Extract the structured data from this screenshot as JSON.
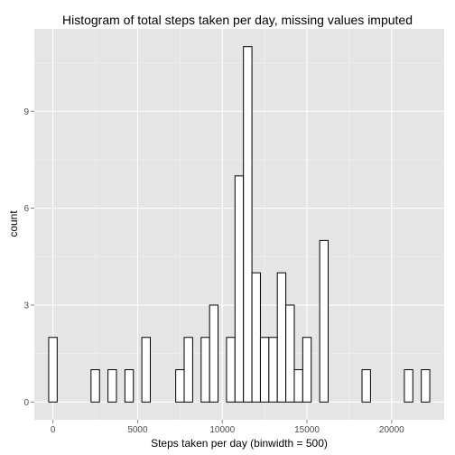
{
  "chart_data": {
    "type": "bar",
    "title": "Histogram of total steps taken per day, missing values imputed",
    "xlabel": "Steps taken per day (binwidth = 500)",
    "ylabel": "count",
    "xlim": [
      -1100,
      23100
    ],
    "ylim": [
      -0.55,
      11.55
    ],
    "x_ticks": [
      0,
      5000,
      10000,
      15000,
      20000
    ],
    "x_tick_labels": [
      "0",
      "5000",
      "10000",
      "15000",
      "20000"
    ],
    "y_ticks": [
      0,
      3,
      6,
      9
    ],
    "y_tick_labels": [
      "0",
      "3",
      "6",
      "9"
    ],
    "binwidth": 500,
    "grid": true,
    "bin_starts": [
      -250,
      250,
      750,
      1250,
      1750,
      2250,
      2750,
      3250,
      3750,
      4250,
      4750,
      5250,
      5750,
      6250,
      6750,
      7250,
      7750,
      8250,
      8750,
      9250,
      9750,
      10250,
      10750,
      11250,
      11750,
      12250,
      12750,
      13250,
      13750,
      14250,
      14750,
      15250,
      15750,
      16250,
      16750,
      17250,
      17750,
      18250,
      18750,
      19250,
      19750,
      20250,
      20750,
      21250,
      21750
    ],
    "values": [
      2,
      0,
      0,
      0,
      0,
      1,
      0,
      1,
      0,
      1,
      0,
      2,
      0,
      0,
      0,
      1,
      2,
      0,
      2,
      3,
      0,
      2,
      7,
      11,
      4,
      2,
      2,
      4,
      3,
      1,
      2,
      0,
      5,
      0,
      0,
      0,
      0,
      1,
      0,
      0,
      0,
      0,
      1,
      0,
      1
    ]
  }
}
